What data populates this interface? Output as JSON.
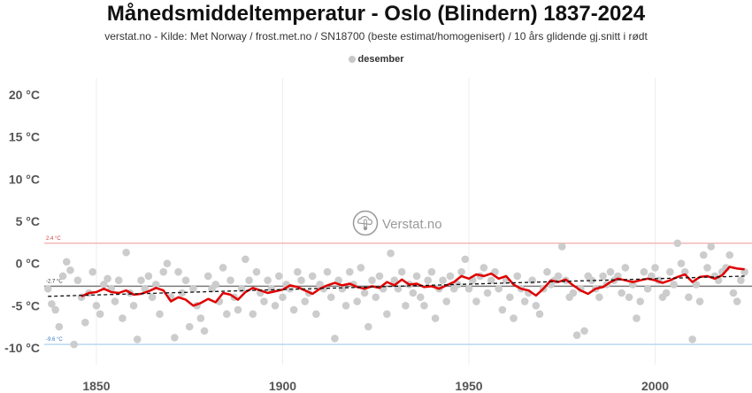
{
  "header": {
    "title": "Månedsmiddeltemperatur - Oslo (Blindern) 1837-2024",
    "subtitle": "verstat.no - Kilde: Met Norway / frost.met.no / SN18700 (beste estimat/homogenisert) / 10 års glidende gj.snitt i rødt"
  },
  "watermark": {
    "text": "Verstat.no",
    "icon": "weather-thermometer-icon"
  },
  "colors": {
    "points": "#cccccc",
    "moving_avg": "#e00000",
    "trend": "#111111",
    "mean_line": "#7a7a7a",
    "max_line": "#f4b8b8",
    "min_line": "#b9d7f2",
    "max_label": "#d04040",
    "min_label": "#3a78c8",
    "grid": "#eeeeee"
  },
  "chart_data": {
    "type": "scatter",
    "title": "Månedsmiddeltemperatur - Oslo (Blindern) 1837-2024",
    "xlabel": "",
    "ylabel": "",
    "legend": {
      "position": "top-center",
      "entries": [
        "desember"
      ]
    },
    "xlim": [
      1836,
      2026
    ],
    "ylim": [
      -12,
      22
    ],
    "x_ticks": [
      1850,
      1900,
      1950,
      2000
    ],
    "y_ticks": [
      {
        "value": 20,
        "label": "20 °C"
      },
      {
        "value": 15,
        "label": "15 °C"
      },
      {
        "value": 10,
        "label": "10 °C"
      },
      {
        "value": 5,
        "label": "5 °C"
      },
      {
        "value": 0,
        "label": "0 °C"
      },
      {
        "value": -5,
        "label": "-5 °C"
      },
      {
        "value": -10,
        "label": "-10 °C"
      }
    ],
    "grid": {
      "vertical": true,
      "horizontal": false
    },
    "reference_lines": [
      {
        "name": "max",
        "value": 2.4,
        "label": "2.4 °C"
      },
      {
        "name": "mean",
        "value": -2.7,
        "label": "-2.7 °C"
      },
      {
        "name": "min",
        "value": -9.6,
        "label": "-9.6 °C"
      }
    ],
    "series": [
      {
        "name": "desember",
        "kind": "scatter",
        "points": [
          [
            1837,
            -3.0
          ],
          [
            1838,
            -4.8
          ],
          [
            1839,
            -5.5
          ],
          [
            1840,
            -7.5
          ],
          [
            1841,
            -1.5
          ],
          [
            1842,
            0.2
          ],
          [
            1843,
            -0.8
          ],
          [
            1844,
            -9.6
          ],
          [
            1845,
            -2.0
          ],
          [
            1846,
            -4.0
          ],
          [
            1847,
            -7.0
          ],
          [
            1848,
            -3.5
          ],
          [
            1849,
            -1.0
          ],
          [
            1850,
            -5.0
          ],
          [
            1851,
            -6.0
          ],
          [
            1852,
            -2.5
          ],
          [
            1853,
            -1.8
          ],
          [
            1854,
            -3.0
          ],
          [
            1855,
            -4.5
          ],
          [
            1856,
            -2.0
          ],
          [
            1857,
            -6.5
          ],
          [
            1858,
            1.3
          ],
          [
            1859,
            -3.5
          ],
          [
            1860,
            -5.0
          ],
          [
            1861,
            -9.0
          ],
          [
            1862,
            -2.0
          ],
          [
            1863,
            -3.0
          ],
          [
            1864,
            -1.5
          ],
          [
            1865,
            -4.0
          ],
          [
            1866,
            -2.5
          ],
          [
            1867,
            -6.0
          ],
          [
            1868,
            -1.0
          ],
          [
            1869,
            0.0
          ],
          [
            1870,
            -4.0
          ],
          [
            1871,
            -8.8
          ],
          [
            1872,
            -1.0
          ],
          [
            1873,
            -3.5
          ],
          [
            1874,
            -2.0
          ],
          [
            1875,
            -7.5
          ],
          [
            1876,
            -3.0
          ],
          [
            1877,
            -5.0
          ],
          [
            1878,
            -6.5
          ],
          [
            1879,
            -8.0
          ],
          [
            1880,
            -1.5
          ],
          [
            1881,
            -3.0
          ],
          [
            1882,
            -2.5
          ],
          [
            1883,
            -4.5
          ],
          [
            1884,
            -0.5
          ],
          [
            1885,
            -6.0
          ],
          [
            1886,
            -2.0
          ],
          [
            1887,
            -4.0
          ],
          [
            1888,
            -5.5
          ],
          [
            1889,
            -3.0
          ],
          [
            1890,
            0.5
          ],
          [
            1891,
            -2.0
          ],
          [
            1892,
            -6.0
          ],
          [
            1893,
            -1.0
          ],
          [
            1894,
            -3.5
          ],
          [
            1895,
            -4.5
          ],
          [
            1896,
            -2.0
          ],
          [
            1897,
            -3.0
          ],
          [
            1898,
            -5.0
          ],
          [
            1899,
            -1.5
          ],
          [
            1900,
            -4.0
          ],
          [
            1901,
            -2.5
          ],
          [
            1902,
            -3.0
          ],
          [
            1903,
            -5.5
          ],
          [
            1904,
            -1.0
          ],
          [
            1905,
            -2.0
          ],
          [
            1906,
            -4.5
          ],
          [
            1907,
            -3.5
          ],
          [
            1908,
            -1.5
          ],
          [
            1909,
            -6.0
          ],
          [
            1910,
            -2.5
          ],
          [
            1911,
            -3.0
          ],
          [
            1912,
            -1.0
          ],
          [
            1913,
            -4.0
          ],
          [
            1914,
            -8.9
          ],
          [
            1915,
            -2.0
          ],
          [
            1916,
            -3.0
          ],
          [
            1917,
            -5.0
          ],
          [
            1918,
            -1.0
          ],
          [
            1919,
            -2.5
          ],
          [
            1920,
            -4.5
          ],
          [
            1921,
            -0.5
          ],
          [
            1922,
            -3.5
          ],
          [
            1923,
            -7.5
          ],
          [
            1924,
            -2.0
          ],
          [
            1925,
            -4.0
          ],
          [
            1926,
            -1.5
          ],
          [
            1927,
            -3.0
          ],
          [
            1928,
            -6.0
          ],
          [
            1929,
            1.2
          ],
          [
            1930,
            -2.0
          ],
          [
            1931,
            -3.0
          ],
          [
            1932,
            -1.0
          ],
          [
            1933,
            -5.0
          ],
          [
            1934,
            -2.5
          ],
          [
            1935,
            -3.5
          ],
          [
            1936,
            -1.5
          ],
          [
            1937,
            -4.0
          ],
          [
            1938,
            -5.0
          ],
          [
            1939,
            -2.0
          ],
          [
            1940,
            -1.0
          ],
          [
            1941,
            -6.5
          ],
          [
            1942,
            -3.0
          ],
          [
            1943,
            -2.0
          ],
          [
            1944,
            -4.5
          ],
          [
            1945,
            -1.5
          ],
          [
            1946,
            -3.0
          ],
          [
            1947,
            -2.5
          ],
          [
            1948,
            -1.0
          ],
          [
            1949,
            0.5
          ],
          [
            1950,
            -3.0
          ],
          [
            1951,
            -2.0
          ],
          [
            1952,
            -4.5
          ],
          [
            1953,
            -1.5
          ],
          [
            1954,
            -0.5
          ],
          [
            1955,
            -3.5
          ],
          [
            1956,
            -2.0
          ],
          [
            1957,
            -1.0
          ],
          [
            1958,
            -3.0
          ],
          [
            1959,
            -5.5
          ],
          [
            1960,
            -2.0
          ],
          [
            1961,
            -4.0
          ],
          [
            1962,
            -6.5
          ],
          [
            1963,
            -1.5
          ],
          [
            1964,
            -3.0
          ],
          [
            1965,
            -4.5
          ],
          [
            1966,
            -3.5
          ],
          [
            1967,
            -2.0
          ],
          [
            1968,
            -5.0
          ],
          [
            1969,
            -6.0
          ],
          [
            1970,
            -3.0
          ],
          [
            1971,
            -1.0
          ],
          [
            1972,
            -2.5
          ],
          [
            1973,
            -2.0
          ],
          [
            1974,
            -1.5
          ],
          [
            1975,
            2.0
          ],
          [
            1976,
            -2.0
          ],
          [
            1977,
            -4.0
          ],
          [
            1978,
            -3.5
          ],
          [
            1979,
            -8.5
          ],
          [
            1980,
            -3.0
          ],
          [
            1981,
            -8.0
          ],
          [
            1982,
            -1.5
          ],
          [
            1983,
            -2.0
          ],
          [
            1984,
            -3.0
          ],
          [
            1985,
            -4.0
          ],
          [
            1986,
            -1.5
          ],
          [
            1987,
            -2.5
          ],
          [
            1988,
            -1.0
          ],
          [
            1989,
            -2.0
          ],
          [
            1990,
            -1.5
          ],
          [
            1991,
            -3.5
          ],
          [
            1992,
            -0.5
          ],
          [
            1993,
            -4.0
          ],
          [
            1994,
            -2.5
          ],
          [
            1995,
            -6.5
          ],
          [
            1996,
            -4.5
          ],
          [
            1997,
            -1.0
          ],
          [
            1998,
            -3.0
          ],
          [
            1999,
            -1.5
          ],
          [
            2000,
            -0.5
          ],
          [
            2001,
            -2.0
          ],
          [
            2002,
            -4.0
          ],
          [
            2003,
            -3.5
          ],
          [
            2004,
            -1.0
          ],
          [
            2005,
            -2.5
          ],
          [
            2006,
            2.4
          ],
          [
            2007,
            0.0
          ],
          [
            2008,
            -1.0
          ],
          [
            2009,
            -4.0
          ],
          [
            2010,
            -9.0
          ],
          [
            2011,
            -2.5
          ],
          [
            2012,
            -4.5
          ],
          [
            2013,
            1.0
          ],
          [
            2014,
            -0.5
          ],
          [
            2015,
            2.0
          ],
          [
            2016,
            -1.5
          ],
          [
            2017,
            -2.0
          ],
          [
            2018,
            -1.0
          ],
          [
            2019,
            -0.5
          ],
          [
            2020,
            1.0
          ],
          [
            2021,
            -3.5
          ],
          [
            2022,
            -4.5
          ],
          [
            2023,
            -2.0
          ],
          [
            2024,
            -1.0
          ]
        ]
      },
      {
        "name": "10 års glidende gj.snitt",
        "kind": "line",
        "points": [
          [
            1846,
            -3.9
          ],
          [
            1848,
            -3.5
          ],
          [
            1850,
            -3.4
          ],
          [
            1852,
            -3.0
          ],
          [
            1854,
            -3.4
          ],
          [
            1856,
            -3.5
          ],
          [
            1858,
            -3.2
          ],
          [
            1860,
            -3.7
          ],
          [
            1862,
            -3.6
          ],
          [
            1864,
            -3.3
          ],
          [
            1866,
            -2.9
          ],
          [
            1868,
            -3.2
          ],
          [
            1870,
            -4.5
          ],
          [
            1872,
            -4.0
          ],
          [
            1874,
            -4.3
          ],
          [
            1876,
            -5.0
          ],
          [
            1878,
            -4.7
          ],
          [
            1880,
            -4.2
          ],
          [
            1882,
            -4.6
          ],
          [
            1884,
            -3.5
          ],
          [
            1886,
            -3.7
          ],
          [
            1888,
            -4.3
          ],
          [
            1890,
            -3.4
          ],
          [
            1892,
            -2.9
          ],
          [
            1894,
            -3.2
          ],
          [
            1896,
            -3.5
          ],
          [
            1898,
            -3.3
          ],
          [
            1900,
            -3.1
          ],
          [
            1902,
            -2.6
          ],
          [
            1904,
            -2.8
          ],
          [
            1906,
            -3.2
          ],
          [
            1908,
            -3.6
          ],
          [
            1910,
            -3.0
          ],
          [
            1912,
            -2.6
          ],
          [
            1914,
            -2.3
          ],
          [
            1916,
            -2.6
          ],
          [
            1918,
            -2.4
          ],
          [
            1920,
            -2.8
          ],
          [
            1922,
            -3.0
          ],
          [
            1924,
            -2.7
          ],
          [
            1926,
            -2.9
          ],
          [
            1928,
            -2.2
          ],
          [
            1930,
            -2.6
          ],
          [
            1932,
            -1.9
          ],
          [
            1934,
            -2.5
          ],
          [
            1936,
            -2.4
          ],
          [
            1938,
            -2.8
          ],
          [
            1940,
            -2.7
          ],
          [
            1942,
            -3.0
          ],
          [
            1944,
            -2.6
          ],
          [
            1946,
            -2.2
          ],
          [
            1948,
            -1.5
          ],
          [
            1950,
            -1.8
          ],
          [
            1952,
            -1.3
          ],
          [
            1954,
            -1.5
          ],
          [
            1956,
            -1.2
          ],
          [
            1958,
            -1.8
          ],
          [
            1960,
            -1.5
          ],
          [
            1962,
            -2.5
          ],
          [
            1964,
            -3.0
          ],
          [
            1966,
            -3.2
          ],
          [
            1968,
            -3.8
          ],
          [
            1970,
            -3.0
          ],
          [
            1972,
            -2.0
          ],
          [
            1974,
            -2.2
          ],
          [
            1976,
            -1.9
          ],
          [
            1978,
            -2.6
          ],
          [
            1980,
            -3.2
          ],
          [
            1982,
            -3.6
          ],
          [
            1984,
            -3.0
          ],
          [
            1986,
            -2.8
          ],
          [
            1988,
            -2.2
          ],
          [
            1990,
            -1.8
          ],
          [
            1992,
            -2.0
          ],
          [
            1994,
            -2.2
          ],
          [
            1996,
            -2.0
          ],
          [
            1998,
            -1.8
          ],
          [
            2000,
            -2.0
          ],
          [
            2002,
            -2.3
          ],
          [
            2004,
            -2.0
          ],
          [
            2006,
            -1.6
          ],
          [
            2008,
            -1.3
          ],
          [
            2010,
            -2.2
          ],
          [
            2012,
            -1.6
          ],
          [
            2014,
            -1.5
          ],
          [
            2016,
            -1.8
          ],
          [
            2018,
            -1.4
          ],
          [
            2020,
            -0.4
          ],
          [
            2022,
            -0.6
          ],
          [
            2024,
            -0.7
          ]
        ]
      },
      {
        "name": "trend",
        "kind": "line",
        "points": [
          [
            1837,
            -3.9
          ],
          [
            2024,
            -1.5
          ]
        ]
      }
    ]
  }
}
